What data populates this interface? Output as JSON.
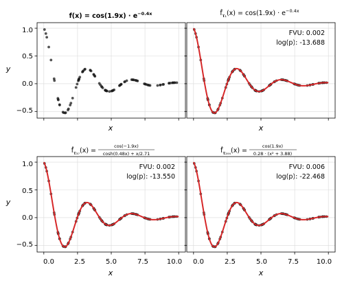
{
  "chart_data": [
    {
      "panel": "top-left",
      "type": "scatter",
      "title": "f(x) = cos(1.9x) · e^{-0.4x}",
      "title_parts": {
        "main": "f(x) = cos(1.9x) · e",
        "sup": "−0.4x"
      },
      "xlabel": "x",
      "ylabel": "y",
      "xlim": [
        -0.5,
        10.5
      ],
      "ylim": [
        -0.62,
        1.1
      ],
      "yticks": [
        "1.0",
        "0.5",
        "0.0",
        "−0.5"
      ],
      "xticks_shown": false,
      "series": [
        {
          "marker": "dot",
          "color": "#1a1a1a",
          "source": "f(x) = cos(1.9x)·e^(−0.4x)"
        }
      ],
      "fvu": null,
      "logp": null,
      "grid": true
    },
    {
      "panel": "top-right",
      "type": "line",
      "title_parts": {
        "prefix": "f̂",
        "sub": "𝛕₁",
        "suffix": "(x) = cos(1.9x) · e",
        "sup": "−0.4x"
      },
      "xlabel": "x",
      "ylabel": "",
      "xlim": [
        -0.5,
        10.5
      ],
      "ylim": [
        -0.62,
        1.1
      ],
      "xticks_shown": false,
      "yticks_shown": false,
      "series": [
        {
          "marker": "dot",
          "color": "#1a1a1a",
          "source": "data"
        },
        {
          "line": true,
          "color": "#d62728",
          "source": "cos(1.9x)·e^(−0.4x)"
        }
      ],
      "fvu": "FVU: 0.002",
      "logp": "log(p): -13.688",
      "grid": true
    },
    {
      "panel": "bottom-left",
      "type": "line",
      "title_parts": {
        "prefix": "f̂",
        "sub": "𝛕₃₇",
        "suffix": "(x) =",
        "num": "cos(−1.9x)",
        "den": "cosh(0.48x) + x/2.71"
      },
      "xlabel": "x",
      "ylabel": "y",
      "xlim": [
        -0.5,
        10.5
      ],
      "ylim": [
        -0.62,
        1.1
      ],
      "xticks": [
        "0.0",
        "2.5",
        "5.0",
        "7.5",
        "10.0"
      ],
      "yticks": [
        "1.0",
        "0.5",
        "0.0",
        "−0.5"
      ],
      "series": [
        {
          "marker": "dot",
          "color": "#1a1a1a",
          "source": "data"
        },
        {
          "line": true,
          "color": "#d62728",
          "source": "cos(−1.9x) / (cosh(0.48x) + x/2.71)"
        }
      ],
      "fvu": "FVU: 0.002",
      "logp": "log(p): -13.550",
      "grid": true
    },
    {
      "panel": "bottom-right",
      "type": "line",
      "title_parts": {
        "prefix": "f̂",
        "sub": "𝛕₂₀₄",
        "suffix": "(x) =",
        "num": "cos(1.9x)",
        "den": "0.28 · (x² + 3.88)"
      },
      "xlabel": "x",
      "ylabel": "",
      "xlim": [
        -0.5,
        10.5
      ],
      "ylim": [
        -0.62,
        1.1
      ],
      "xticks": [
        "0.0",
        "2.5",
        "5.0",
        "7.5",
        "10.0"
      ],
      "yticks_shown": false,
      "series": [
        {
          "marker": "dot",
          "color": "#1a1a1a",
          "source": "data"
        },
        {
          "line": true,
          "color": "#d62728",
          "source": "cos(1.9x) / (0.28·(x² + 3.88))"
        }
      ],
      "fvu": "FVU: 0.006",
      "logp": "log(p): -22.468",
      "grid": true
    }
  ],
  "colors": {
    "points": "#1a1a1a",
    "fit": "#d62728",
    "grid": "#d9d9d9"
  }
}
